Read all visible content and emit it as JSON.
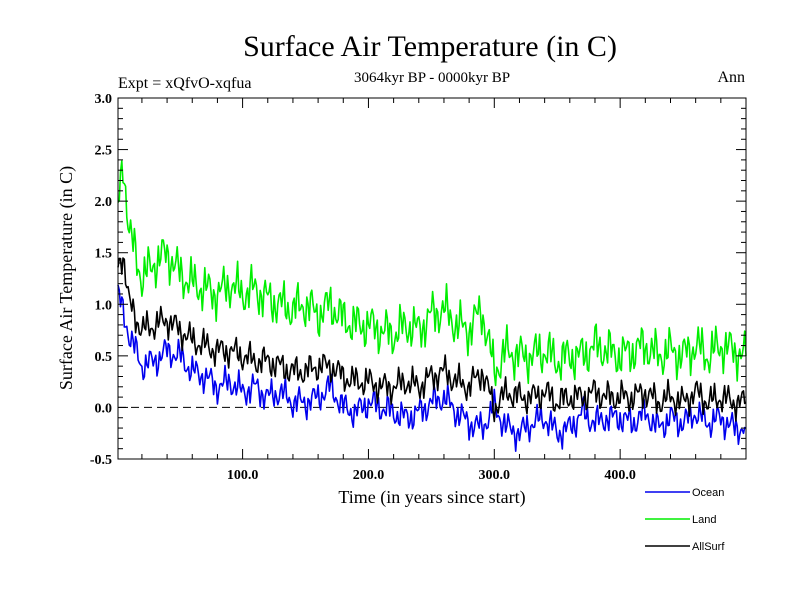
{
  "chart_data": {
    "type": "line",
    "title": "Surface Air Temperature (in C)",
    "subtitle": "3064kyr BP - 0000kyr BP",
    "experiment_label": "Expt = xQfvO-xqfua",
    "season_label": "Ann",
    "xlabel": "Time (in years since start)",
    "ylabel": "Surface Air Temperature (in C)",
    "xlim": [
      1,
      500
    ],
    "ylim": [
      -0.5,
      3.0
    ],
    "x_tick_labels": [
      {
        "value": 100,
        "label": "100.0"
      },
      {
        "value": 200,
        "label": "200.0"
      },
      {
        "value": 300,
        "label": "300.0"
      },
      {
        "value": 400,
        "label": "400.0"
      }
    ],
    "y_tick_labels": [
      {
        "value": -0.5,
        "label": "-0.5"
      },
      {
        "value": 0.0,
        "label": "0.0"
      },
      {
        "value": 0.5,
        "label": "0.5"
      },
      {
        "value": 1.0,
        "label": "1.0"
      },
      {
        "value": 1.5,
        "label": "1.5"
      },
      {
        "value": 2.0,
        "label": "2.0"
      },
      {
        "value": 2.5,
        "label": "2.5"
      },
      {
        "value": 3.0,
        "label": "3.0"
      }
    ],
    "zero_line": 0.0,
    "series": [
      {
        "name": "Ocean",
        "color": "#0000ee",
        "x": [
          1,
          10,
          20,
          30,
          40,
          50,
          60,
          70,
          80,
          90,
          100,
          110,
          120,
          130,
          140,
          150,
          160,
          170,
          180,
          190,
          200,
          210,
          220,
          230,
          240,
          250,
          260,
          270,
          280,
          290,
          300,
          310,
          320,
          330,
          340,
          350,
          360,
          370,
          380,
          390,
          400,
          410,
          420,
          430,
          440,
          450,
          460,
          470,
          480,
          490,
          500
        ],
        "values": [
          1.1,
          0.7,
          0.4,
          0.45,
          0.55,
          0.5,
          0.35,
          0.3,
          0.2,
          0.25,
          0.15,
          0.2,
          0.1,
          0.15,
          0.05,
          0.05,
          0.1,
          0.2,
          0.0,
          -0.05,
          0.05,
          0.0,
          -0.05,
          -0.1,
          -0.05,
          0.05,
          0.1,
          -0.05,
          -0.15,
          -0.2,
          0.0,
          -0.2,
          -0.25,
          -0.15,
          -0.1,
          -0.25,
          -0.2,
          -0.05,
          -0.15,
          -0.1,
          -0.1,
          -0.15,
          -0.05,
          -0.2,
          -0.1,
          -0.15,
          -0.05,
          -0.15,
          -0.1,
          -0.2,
          -0.2
        ]
      },
      {
        "name": "Land",
        "color": "#00ee00",
        "x": [
          1,
          5,
          10,
          20,
          30,
          40,
          50,
          60,
          70,
          80,
          90,
          100,
          110,
          120,
          130,
          140,
          150,
          160,
          170,
          180,
          190,
          200,
          210,
          220,
          230,
          240,
          250,
          260,
          270,
          280,
          290,
          300,
          310,
          320,
          330,
          340,
          350,
          360,
          370,
          380,
          390,
          400,
          410,
          420,
          430,
          440,
          450,
          460,
          470,
          480,
          490,
          500
        ],
        "values": [
          1.9,
          2.4,
          1.7,
          1.25,
          1.4,
          1.5,
          1.3,
          1.2,
          1.15,
          1.1,
          1.2,
          1.1,
          1.15,
          1.05,
          1.0,
          0.95,
          1.0,
          0.9,
          1.0,
          0.85,
          0.8,
          0.8,
          0.75,
          0.7,
          0.8,
          0.75,
          0.9,
          0.95,
          0.8,
          0.75,
          0.95,
          0.35,
          0.55,
          0.5,
          0.5,
          0.55,
          0.45,
          0.5,
          0.5,
          0.6,
          0.55,
          0.5,
          0.55,
          0.6,
          0.5,
          0.55,
          0.5,
          0.6,
          0.5,
          0.6,
          0.55,
          0.5
        ]
      },
      {
        "name": "AllSurf",
        "color": "#000000",
        "x": [
          1,
          5,
          10,
          20,
          30,
          40,
          50,
          60,
          70,
          80,
          90,
          100,
          110,
          120,
          130,
          140,
          150,
          160,
          170,
          180,
          190,
          200,
          210,
          220,
          230,
          240,
          250,
          260,
          270,
          280,
          290,
          300,
          310,
          320,
          330,
          340,
          350,
          360,
          370,
          380,
          390,
          400,
          410,
          420,
          430,
          440,
          450,
          460,
          470,
          480,
          490,
          500
        ],
        "values": [
          1.35,
          1.5,
          1.0,
          0.75,
          0.8,
          0.85,
          0.75,
          0.65,
          0.6,
          0.55,
          0.55,
          0.5,
          0.45,
          0.45,
          0.4,
          0.35,
          0.35,
          0.4,
          0.4,
          0.3,
          0.25,
          0.25,
          0.2,
          0.2,
          0.25,
          0.2,
          0.3,
          0.35,
          0.25,
          0.2,
          0.35,
          0.0,
          0.15,
          0.1,
          0.1,
          0.15,
          0.05,
          0.1,
          0.1,
          0.15,
          0.1,
          0.1,
          0.1,
          0.15,
          0.05,
          0.1,
          0.05,
          0.15,
          0.05,
          0.1,
          0.05,
          0.05
        ]
      }
    ],
    "legend_position": "bottom-right"
  }
}
